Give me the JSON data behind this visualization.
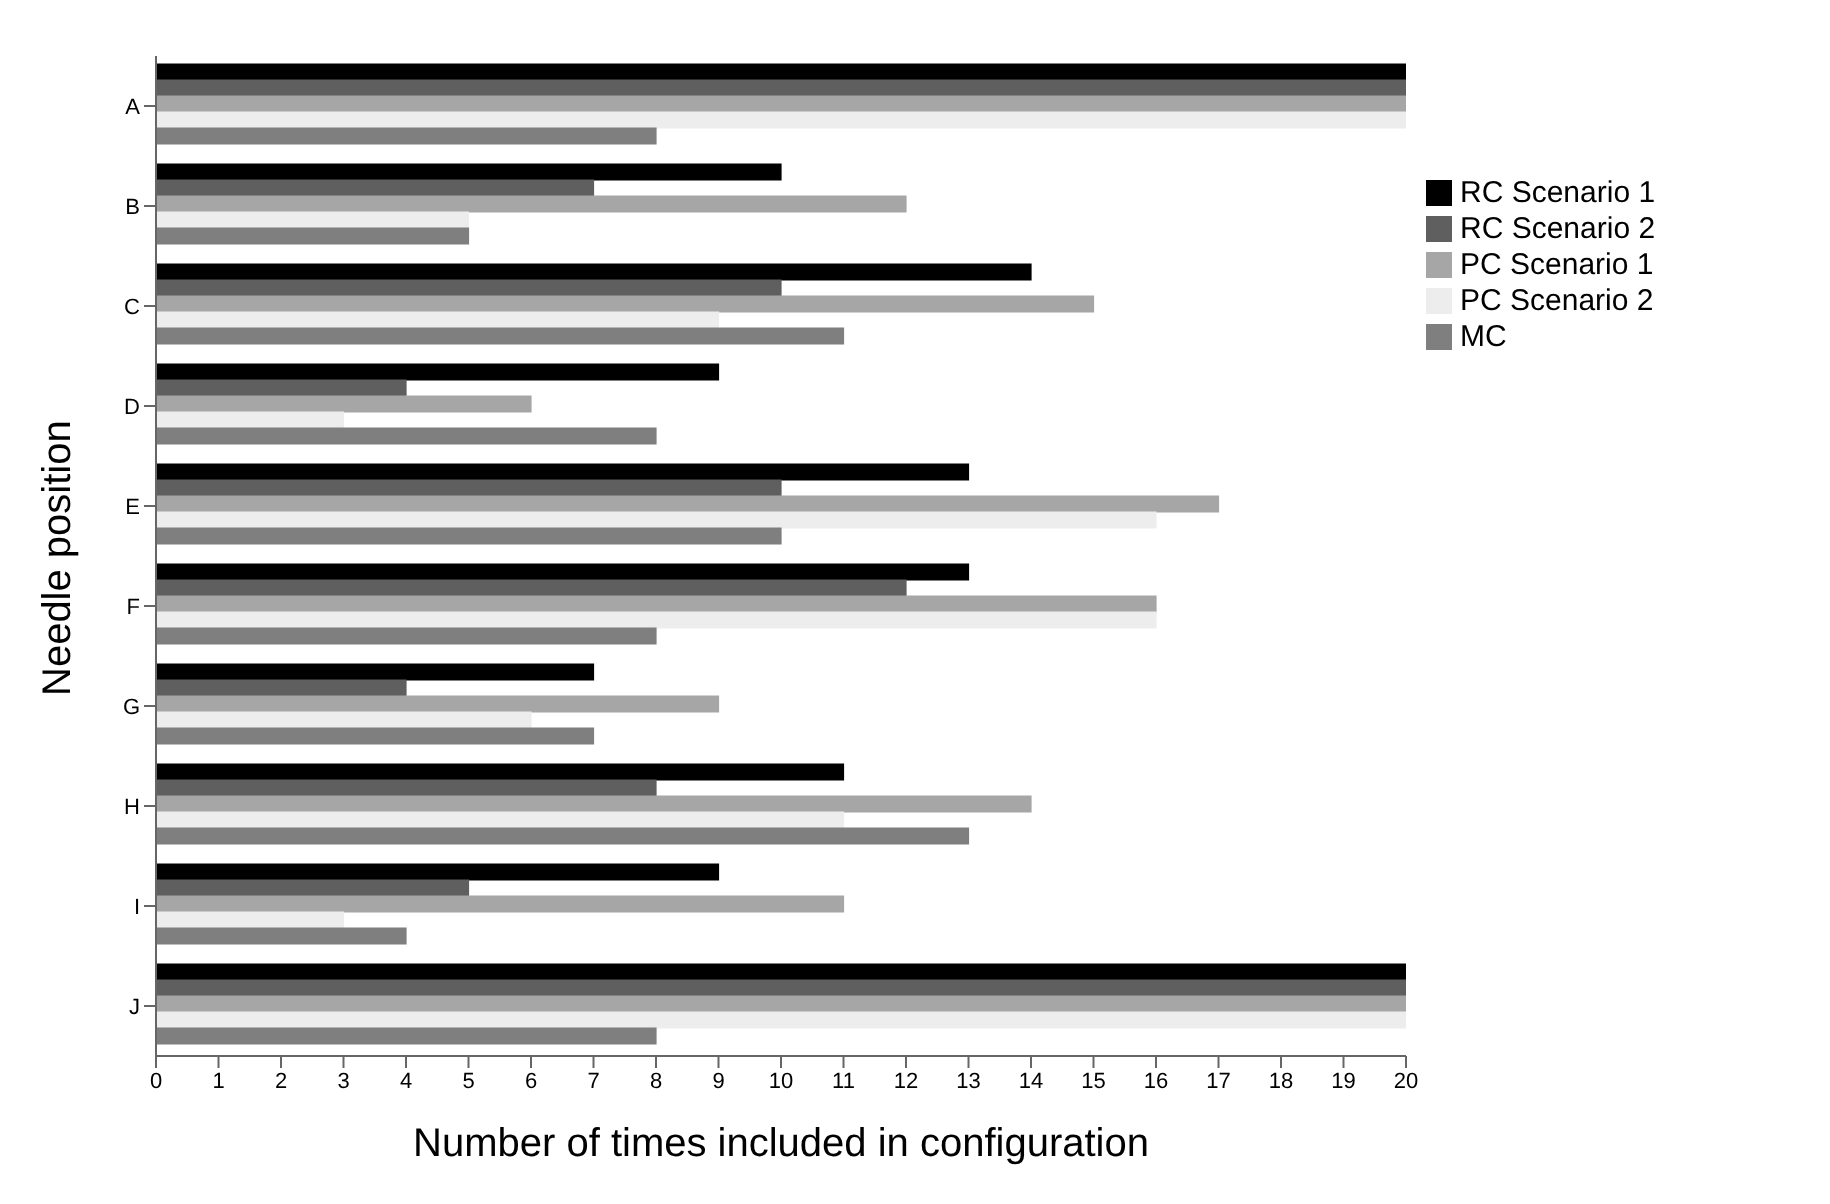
{
  "chart_data": {
    "type": "bar",
    "orientation": "horizontal",
    "xlabel": "Number of times included in configuration",
    "ylabel": "Needle position",
    "categories": [
      "A",
      "B",
      "C",
      "D",
      "E",
      "F",
      "G",
      "H",
      "I",
      "J"
    ],
    "series": [
      {
        "name": "RC Scenario 1",
        "color": "#000000",
        "values": [
          20,
          10,
          14,
          9,
          13,
          13,
          7,
          11,
          9,
          20
        ]
      },
      {
        "name": "RC Scenario 2",
        "color": "#5f5f5f",
        "values": [
          20,
          7,
          10,
          4,
          10,
          12,
          4,
          8,
          5,
          20
        ]
      },
      {
        "name": "PC Scenario 1",
        "color": "#a6a6a6",
        "values": [
          20,
          12,
          15,
          6,
          17,
          16,
          9,
          14,
          11,
          20
        ]
      },
      {
        "name": "PC Scenario 2",
        "color": "#ededed",
        "values": [
          20,
          5,
          9,
          3,
          16,
          16,
          6,
          11,
          3,
          20
        ]
      },
      {
        "name": "MC",
        "color": "#7f7f7f",
        "values": [
          8,
          5,
          11,
          8,
          10,
          8,
          7,
          13,
          4,
          8
        ]
      }
    ],
    "xlim": [
      0,
      20
    ],
    "xticks": [
      0,
      1,
      2,
      3,
      4,
      5,
      6,
      7,
      8,
      9,
      10,
      11,
      12,
      13,
      14,
      15,
      16,
      17,
      18,
      19,
      20
    ],
    "legend": "top right"
  }
}
